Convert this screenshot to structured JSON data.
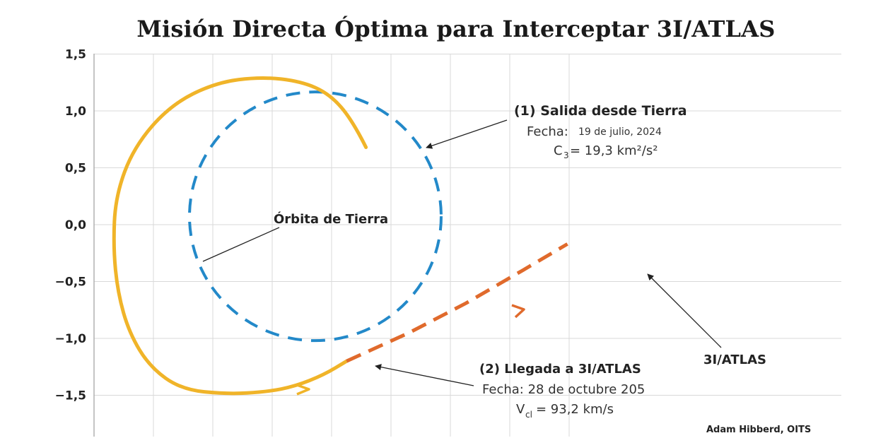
{
  "chart_data": {
    "type": "line",
    "title": "Misión Directa Óptima para Interceptar 3I/ATLAS",
    "xlabel": "",
    "ylabel": "",
    "ylim": [
      -1.85,
      1.5
    ],
    "xlim": [
      -2.3,
      2.2
    ],
    "grid": true,
    "y_ticks": [
      {
        "value": 1.5,
        "label": "1,5"
      },
      {
        "value": 1.0,
        "label": "1,0"
      },
      {
        "value": 0.5,
        "label": "0,5"
      },
      {
        "value": 0.0,
        "label": "0,0"
      },
      {
        "value": -0.5,
        "label": "−0,5"
      },
      {
        "value": -1.0,
        "label": "−1,0"
      },
      {
        "value": -1.5,
        "label": "−1,5"
      }
    ],
    "x_gridlines": [
      -2.0,
      -1.5,
      -1.0,
      -0.5,
      0.0,
      0.5,
      1.0,
      1.5,
      2.0
    ],
    "series": [
      {
        "name": "",
        "style": "dashed",
        "color": "#2389c9",
        "shape": "circle",
        "center": [
          0.0,
          0.03
        ],
        "radius": 1.1
      },
      {
        "name": "",
        "style": "solid",
        "color": "#f0b429",
        "points": [
          [
            0.42,
            0.68
          ],
          [
            0.3,
            0.92
          ],
          [
            0.1,
            1.15
          ],
          [
            -0.15,
            1.26
          ],
          [
            -0.5,
            1.3
          ],
          [
            -0.9,
            1.25
          ],
          [
            -1.3,
            1.05
          ],
          [
            -1.62,
            0.68
          ],
          [
            -1.78,
            0.25
          ],
          [
            -1.8,
            -0.2
          ],
          [
            -1.76,
            -0.6
          ],
          [
            -1.66,
            -0.95
          ],
          [
            -1.48,
            -1.25
          ],
          [
            -1.2,
            -1.45
          ],
          [
            -0.8,
            -1.49
          ],
          [
            -0.45,
            -1.47
          ],
          [
            -0.2,
            -1.42
          ],
          [
            0.05,
            -1.32
          ],
          [
            0.25,
            -1.2
          ]
        ]
      },
      {
        "name": "",
        "style": "dashed",
        "color": "#e06a2c",
        "points": [
          [
            0.25,
            -1.2
          ],
          [
            0.8,
            -0.95
          ],
          [
            1.3,
            -0.69
          ],
          [
            1.8,
            -0.4
          ],
          [
            2.19,
            -0.17
          ]
        ]
      }
    ],
    "annotations": {
      "departure": {
        "title": "(1) Salida desde Tierra",
        "date_label": "Fecha:",
        "date": "19 de julio, 2024",
        "c3_symbol": "C",
        "c3_sub": "3",
        "c3_value": "= 19,3 km²/s²"
      },
      "earth_orbit": "Órbita de Tierra",
      "arrival": {
        "title": "(2) Llegada a 3I/ATLAS",
        "date": "Fecha: 28 de octubre 205",
        "v_symbol": "V",
        "v_sub": "cl",
        "v_value": "= 93,2 km/s"
      },
      "comet": "3I/ATLAS",
      "credit": "Adam Hibberd, OITS"
    }
  },
  "colors": {
    "earth_orbit": "#2389c9",
    "earth_orbit_dark": "#17609a",
    "transfer": "#f0b429",
    "comet": "#e06a2c",
    "grid": "#d9d9d9",
    "axis": "#b0b0b0"
  }
}
